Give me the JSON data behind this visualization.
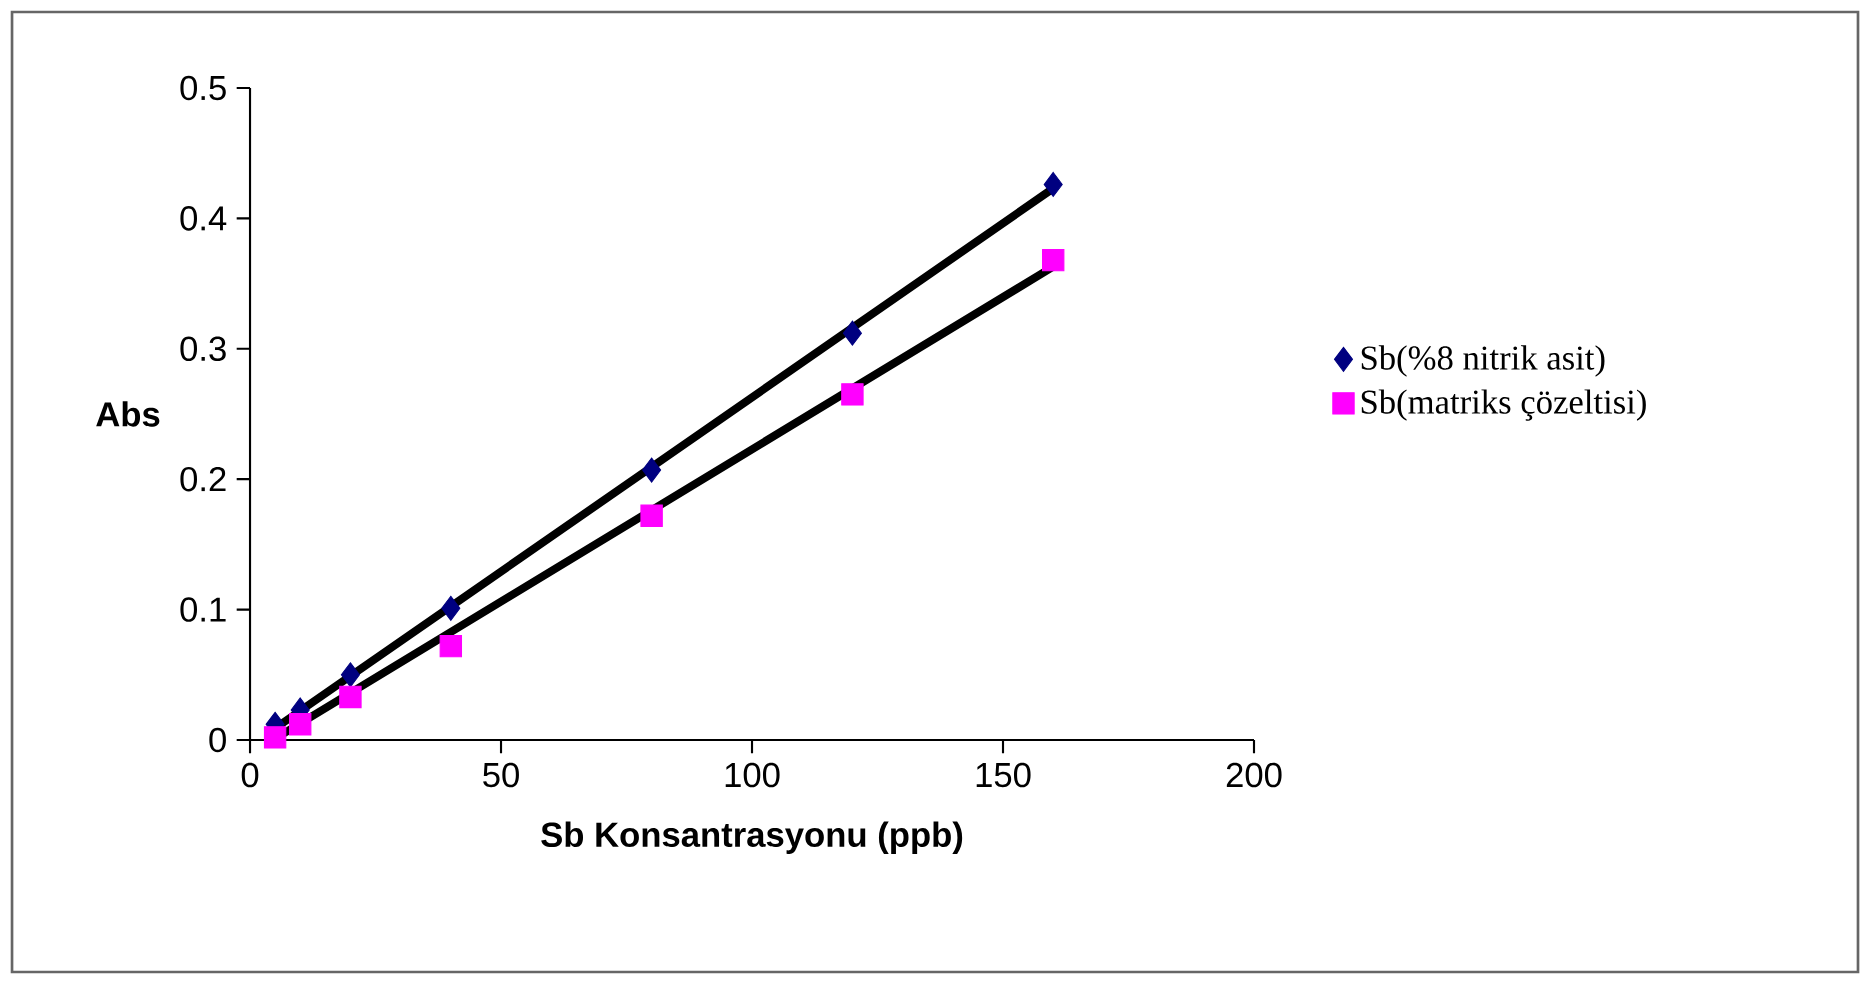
{
  "chart_data": {
    "type": "scatter",
    "xlabel": "Sb Konsantrasyonu (ppb)",
    "ylabel": "Abs",
    "xlim": [
      0,
      200
    ],
    "xticks": [
      0,
      50,
      100,
      150,
      200
    ],
    "ylim": [
      0,
      0.5
    ],
    "yticks": [
      0,
      0.1,
      0.2,
      0.3,
      0.4,
      0.5
    ],
    "legend": "right",
    "grid": false,
    "series": [
      {
        "name": "Sb(%8 nitrik asit)",
        "marker": "diamond",
        "color": "#000080",
        "x": [
          5,
          10,
          20,
          40,
          80,
          120,
          160
        ],
        "values": [
          0.012,
          0.023,
          0.05,
          0.101,
          0.207,
          0.312,
          0.426
        ]
      },
      {
        "name": "Sb(matriks çözeltisi)",
        "marker": "square",
        "color": "#ff00ff",
        "x": [
          5,
          10,
          20,
          40,
          80,
          120,
          160
        ],
        "values": [
          0.002,
          0.012,
          0.033,
          0.072,
          0.172,
          0.265,
          0.368
        ]
      },
      {
        "type": "line",
        "color": "#000000",
        "x": [
          5,
          160
        ],
        "values": [
          0.009,
          0.423
        ]
      },
      {
        "type": "line",
        "color": "#000000",
        "x": [
          5,
          160
        ],
        "values": [
          0.001,
          0.363
        ]
      }
    ]
  }
}
